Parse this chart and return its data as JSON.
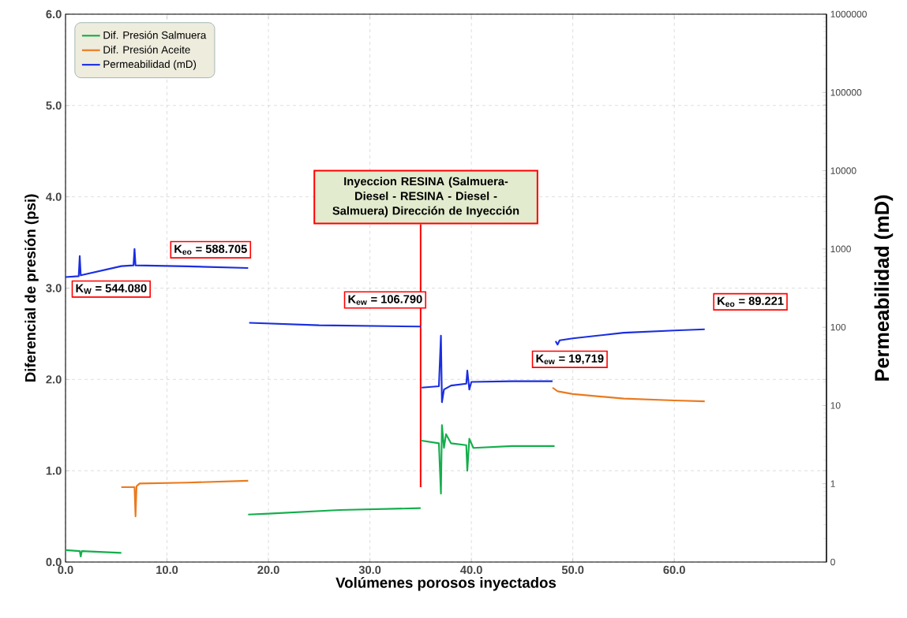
{
  "chart_data": {
    "type": "line",
    "xlabel": "Volúmenes porosos inyectados",
    "ylabel": "Diferencial de presión (psi)",
    "y2label": "Permeabilidad (mD)",
    "xlim": [
      0,
      75
    ],
    "ylim": [
      0,
      6
    ],
    "y2lim": [
      0.1,
      1000000
    ],
    "log": "y2",
    "xticks": [
      {
        "value": 0,
        "label": "0.0"
      },
      {
        "value": 10,
        "label": "10.0"
      },
      {
        "value": 20,
        "label": "20.0"
      },
      {
        "value": 30,
        "label": "30.0"
      },
      {
        "value": 40,
        "label": "40.0"
      },
      {
        "value": 50,
        "label": "50.0"
      },
      {
        "value": 60,
        "label": "60.0"
      }
    ],
    "yticks": [
      {
        "value": 0,
        "label": "0.0"
      },
      {
        "value": 1,
        "label": "1.0"
      },
      {
        "value": 2,
        "label": "2.0"
      },
      {
        "value": 3,
        "label": "3.0"
      },
      {
        "value": 4,
        "label": "4.0"
      },
      {
        "value": 5,
        "label": "5.0"
      },
      {
        "value": 6,
        "label": "6.0"
      }
    ],
    "y2ticks": [
      {
        "value": 0.1,
        "label": "0"
      },
      1,
      10,
      100,
      1000,
      10000,
      100000,
      1000000
    ],
    "grid": true,
    "legend": "top left",
    "marker": "none",
    "line_style": "solid",
    "series": [
      {
        "name": "Dif. Presión Salmuera",
        "color": "#14ae4c",
        "x": [
          0,
          1.4,
          1.5,
          1.6,
          5.5,
          11,
          18,
          20,
          27,
          35,
          35.05,
          35.1,
          36.8,
          37,
          37.1,
          37.3,
          37.5,
          38,
          39.5,
          39.6,
          39.8,
          40.2,
          44,
          48.2
        ],
        "values": [
          0.13,
          0.12,
          0.06,
          0.12,
          0.1,
          null,
          0.52,
          0.53,
          0.57,
          0.59,
          null,
          1.33,
          1.3,
          0.75,
          1.5,
          1.25,
          1.4,
          1.3,
          1.28,
          1.0,
          1.35,
          1.25,
          1.27,
          1.27
        ]
      },
      {
        "name": "Dif. Presión  Aceite",
        "color": "#ea7a1e",
        "x": [
          5.5,
          6.8,
          6.9,
          7.0,
          7.3,
          12,
          18,
          30,
          48,
          48.5,
          50,
          55,
          60,
          63
        ],
        "values": [
          0.82,
          0.82,
          0.5,
          0.83,
          0.86,
          0.87,
          0.89,
          null,
          1.91,
          1.87,
          1.84,
          1.79,
          1.77,
          1.76
        ]
      },
      {
        "name": "Permeabilidad (mD)",
        "color": "#1a2ee0",
        "axis": "y2",
        "x": [
          0,
          1.3,
          1.4,
          1.5,
          5.5,
          6.7,
          6.8,
          6.9,
          12,
          18,
          18.05,
          18.1,
          25,
          35,
          35.05,
          35.1,
          36.8,
          37,
          37.1,
          37.3,
          38,
          39.5,
          39.6,
          39.8,
          40,
          44,
          48,
          48.1,
          48.3,
          48.5,
          48.7,
          50,
          55,
          60,
          63
        ],
        "values": [
          437,
          449,
          810,
          460,
          603,
          617,
          1000,
          617,
          600,
          571,
          null,
          114,
          106,
          102,
          null,
          16.9,
          17.6,
          78,
          11,
          16,
          18,
          19,
          28,
          16,
          20,
          20.4,
          20.4,
          null,
          66.5,
          60,
          68,
          72,
          85,
          91,
          94
        ]
      }
    ],
    "annotations": [
      "Inyeccion RESINA (Salmuera- Diesel - RESINA - Diesel -Salmuera) Dirección de Inyección",
      "K$_{W}$ = 544.080",
      "K$_{eo}$ = 588.705",
      "K$_{ew}$ = 106.790",
      "K$_{ew}$ = 19,719",
      "K$_{eo}$ = 89.221"
    ]
  }
}
